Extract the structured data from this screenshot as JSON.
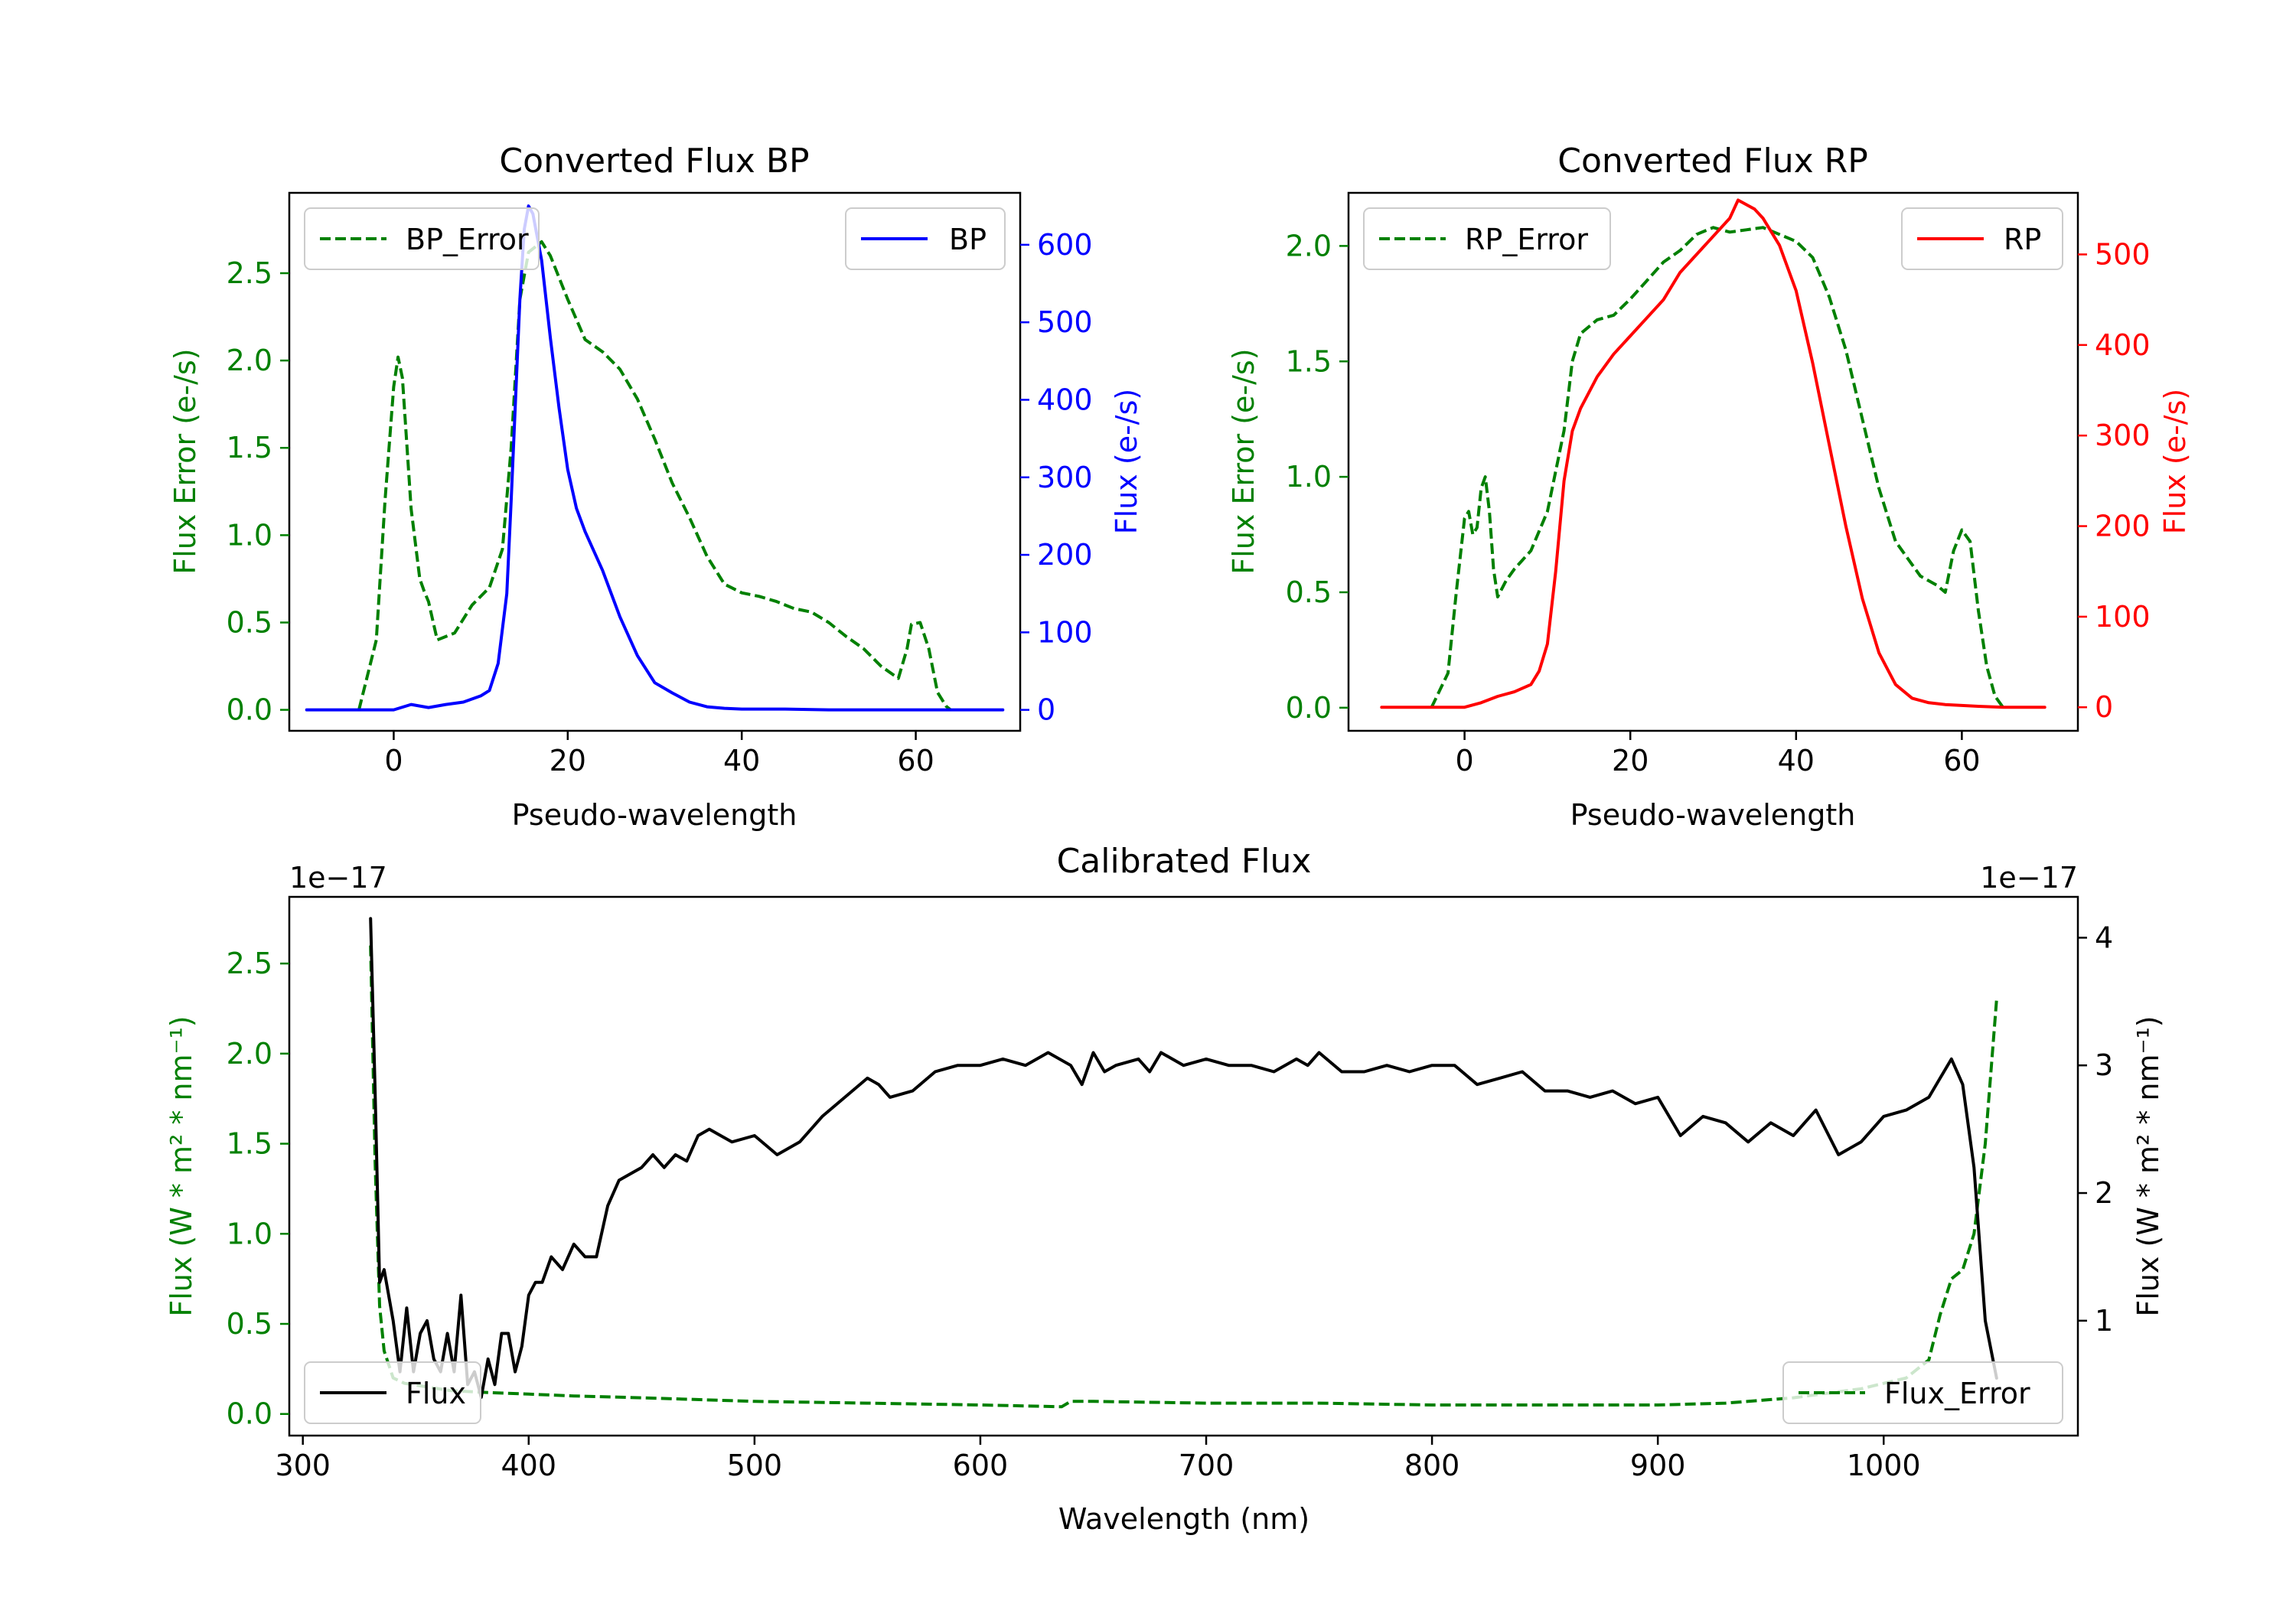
{
  "chart_data": [
    {
      "type": "line",
      "title": "Converted Flux BP",
      "xlabel": "Pseudo-wavelength",
      "ylabel_left": "Flux Error (e-/s)",
      "ylabel_right": "Flux (e-/s)",
      "xlim": [
        -12,
        72
      ],
      "ylim_left": [
        -0.12,
        2.96
      ],
      "ylim_right": [
        -27.0,
        667.0
      ],
      "xticks": [
        "0",
        "20",
        "40",
        "60"
      ],
      "yticks_left": [
        "0.0",
        "0.5",
        "1.0",
        "1.5",
        "2.0",
        "2.5"
      ],
      "yticks_right": [
        "0",
        "100",
        "200",
        "300",
        "400",
        "500",
        "600"
      ],
      "colors": {
        "error": "#008000",
        "flux": "#0000ff"
      },
      "series": [
        {
          "name": "BP_Error",
          "axis": "left",
          "style": "dashed",
          "color": "#008000",
          "x": [
            -4,
            -2,
            -1,
            0,
            0.5,
            1,
            2,
            3,
            3.5,
            4,
            5,
            7,
            9,
            11,
            12.5,
            13.5,
            14.5,
            15.5,
            17,
            18,
            20,
            22,
            24,
            26,
            28,
            30,
            32,
            34,
            36,
            38,
            40,
            42,
            44,
            46,
            48,
            50,
            52,
            54,
            56,
            58,
            59,
            59.5,
            60.5,
            61.5,
            62.5,
            63.5,
            64
          ],
          "y": [
            0.0,
            0.4,
            1.2,
            1.85,
            2.02,
            1.9,
            1.15,
            0.75,
            0.68,
            0.62,
            0.4,
            0.44,
            0.6,
            0.7,
            0.92,
            1.5,
            2.35,
            2.62,
            2.68,
            2.6,
            2.35,
            2.12,
            2.05,
            1.95,
            1.78,
            1.55,
            1.3,
            1.1,
            0.88,
            0.72,
            0.67,
            0.65,
            0.62,
            0.58,
            0.56,
            0.5,
            0.42,
            0.35,
            0.25,
            0.18,
            0.35,
            0.49,
            0.5,
            0.35,
            0.1,
            0.02,
            0.0
          ]
        },
        {
          "name": "BP",
          "axis": "right",
          "style": "solid",
          "color": "#0000ff",
          "x": [
            -10,
            -6,
            -2,
            0,
            2,
            4,
            6,
            8,
            10,
            11,
            12,
            13,
            13.5,
            14,
            14.5,
            15,
            15.5,
            16,
            17,
            18,
            19,
            20,
            21,
            22,
            24,
            26,
            28,
            30,
            32,
            34,
            36,
            38,
            40,
            45,
            50,
            55,
            60,
            65,
            70
          ],
          "y": [
            0,
            0,
            0,
            0,
            7,
            3,
            7,
            10,
            18,
            25,
            60,
            150,
            270,
            400,
            530,
            620,
            650,
            640,
            580,
            480,
            390,
            310,
            260,
            230,
            180,
            120,
            70,
            35,
            22,
            10,
            4,
            2,
            1,
            1,
            0,
            0,
            0,
            0,
            0
          ]
        }
      ],
      "legend": [
        {
          "label": "BP_Error",
          "position": "upper-left"
        },
        {
          "label": "BP",
          "position": "upper-right"
        }
      ]
    },
    {
      "type": "line",
      "title": "Converted Flux RP",
      "xlabel": "Pseudo-wavelength",
      "ylabel_left": "Flux Error (e-/s)",
      "ylabel_right": "Flux (e-/s)",
      "xlim": [
        -14,
        74
      ],
      "ylim_left": [
        -0.1,
        2.23
      ],
      "ylim_right": [
        -26.0,
        568.0
      ],
      "xticks": [
        "0",
        "20",
        "40",
        "60"
      ],
      "yticks_left": [
        "0.0",
        "0.5",
        "1.0",
        "1.5",
        "2.0"
      ],
      "yticks_right": [
        "0",
        "100",
        "200",
        "300",
        "400",
        "500"
      ],
      "colors": {
        "error": "#008000",
        "flux": "#ff0000"
      },
      "series": [
        {
          "name": "RP_Error",
          "axis": "left",
          "style": "dashed",
          "color": "#008000",
          "x": [
            -4,
            -2,
            -1,
            0,
            0.5,
            1,
            1.5,
            2,
            2.5,
            3,
            3.5,
            4,
            5,
            6,
            8,
            10,
            12,
            13,
            14,
            16,
            18,
            20,
            22,
            24,
            26,
            28,
            30,
            32,
            34,
            36,
            38,
            40,
            42,
            44,
            46,
            48,
            50,
            52,
            54,
            55,
            56,
            57,
            58,
            59,
            60,
            61,
            62,
            63,
            64,
            65
          ],
          "y": [
            0.0,
            0.15,
            0.5,
            0.82,
            0.85,
            0.75,
            0.78,
            0.95,
            1.0,
            0.85,
            0.6,
            0.48,
            0.55,
            0.6,
            0.68,
            0.85,
            1.2,
            1.5,
            1.62,
            1.68,
            1.7,
            1.77,
            1.85,
            1.93,
            1.98,
            2.05,
            2.08,
            2.06,
            2.07,
            2.08,
            2.05,
            2.02,
            1.95,
            1.78,
            1.55,
            1.25,
            0.95,
            0.72,
            0.62,
            0.57,
            0.55,
            0.53,
            0.5,
            0.68,
            0.77,
            0.72,
            0.42,
            0.18,
            0.05,
            0.0
          ]
        },
        {
          "name": "RP",
          "axis": "right",
          "style": "solid",
          "color": "#ff0000",
          "x": [
            -10,
            -6,
            -2,
            0,
            2,
            4,
            6,
            8,
            9,
            10,
            11,
            12,
            13,
            14,
            16,
            18,
            20,
            22,
            24,
            26,
            28,
            30,
            32,
            33,
            34,
            35,
            36,
            38,
            40,
            42,
            44,
            46,
            48,
            50,
            52,
            54,
            56,
            58,
            60,
            62,
            65,
            70
          ],
          "y": [
            0,
            0,
            0,
            0,
            5,
            12,
            17,
            25,
            40,
            70,
            150,
            250,
            305,
            330,
            365,
            390,
            410,
            430,
            450,
            480,
            500,
            520,
            540,
            560,
            555,
            550,
            540,
            510,
            460,
            380,
            290,
            200,
            120,
            60,
            25,
            10,
            5,
            3,
            2,
            1,
            0,
            0
          ]
        }
      ],
      "legend": [
        {
          "label": "RP_Error",
          "position": "upper-left"
        },
        {
          "label": "RP",
          "position": "upper-right"
        }
      ]
    },
    {
      "type": "line",
      "title": "Calibrated Flux",
      "xlabel": "Wavelength (nm)",
      "ylabel_left": "Flux (W * m² * nm⁻¹)",
      "ylabel_right": "Flux (W * m² * nm⁻¹)",
      "offset_left": "1e−17",
      "offset_right": "1e−17",
      "xlim": [
        294,
        1086
      ],
      "ylim_left": [
        -0.12,
        2.87
      ],
      "ylim_right": [
        0.1,
        4.32
      ],
      "xticks": [
        "300",
        "400",
        "500",
        "600",
        "700",
        "800",
        "900",
        "1000"
      ],
      "yticks_left": [
        "0.0",
        "0.5",
        "1.0",
        "1.5",
        "2.0",
        "2.5"
      ],
      "yticks_right": [
        "1",
        "2",
        "3",
        "4"
      ],
      "colors": {
        "error": "#008000",
        "flux": "#000000"
      },
      "series": [
        {
          "name": "Flux_Error",
          "axis": "left",
          "style": "dashed",
          "color": "#008000",
          "x": [
            330,
            332,
            334,
            336,
            340,
            345,
            355,
            365,
            380,
            400,
            420,
            450,
            500,
            550,
            600,
            636,
            640,
            650,
            700,
            750,
            800,
            850,
            900,
            930,
            960,
            990,
            1010,
            1020,
            1025,
            1030,
            1035,
            1040,
            1045,
            1050
          ],
          "y": [
            2.6,
            1.4,
            0.6,
            0.35,
            0.2,
            0.17,
            0.15,
            0.13,
            0.12,
            0.11,
            0.1,
            0.09,
            0.07,
            0.06,
            0.05,
            0.04,
            0.07,
            0.07,
            0.06,
            0.06,
            0.05,
            0.05,
            0.05,
            0.06,
            0.09,
            0.14,
            0.2,
            0.3,
            0.55,
            0.75,
            0.8,
            1.0,
            1.5,
            2.3
          ]
        },
        {
          "name": "Flux",
          "axis": "right",
          "style": "solid",
          "color": "#000000",
          "x": [
            330,
            332,
            334,
            336,
            340,
            343,
            346,
            349,
            352,
            355,
            358,
            361,
            364,
            367,
            370,
            373,
            376,
            379,
            382,
            385,
            388,
            391,
            394,
            397,
            400,
            403,
            406,
            410,
            415,
            420,
            425,
            430,
            435,
            440,
            445,
            450,
            455,
            460,
            465,
            470,
            475,
            480,
            485,
            490,
            500,
            510,
            520,
            530,
            540,
            550,
            555,
            560,
            570,
            580,
            590,
            600,
            610,
            620,
            630,
            640,
            645,
            650,
            655,
            660,
            670,
            675,
            680,
            690,
            700,
            710,
            720,
            730,
            740,
            745,
            750,
            760,
            770,
            780,
            790,
            800,
            810,
            820,
            830,
            840,
            850,
            860,
            870,
            880,
            890,
            900,
            910,
            920,
            930,
            940,
            950,
            960,
            970,
            980,
            990,
            1000,
            1010,
            1020,
            1025,
            1030,
            1035,
            1040,
            1045,
            1050
          ],
          "y": [
            4.15,
            2.8,
            1.3,
            1.4,
            1.0,
            0.6,
            1.1,
            0.6,
            0.9,
            1.0,
            0.7,
            0.6,
            0.9,
            0.6,
            1.2,
            0.5,
            0.6,
            0.4,
            0.7,
            0.5,
            0.9,
            0.9,
            0.6,
            0.8,
            1.2,
            1.3,
            1.3,
            1.5,
            1.4,
            1.6,
            1.5,
            1.5,
            1.9,
            2.1,
            2.15,
            2.2,
            2.3,
            2.2,
            2.3,
            2.25,
            2.45,
            2.5,
            2.45,
            2.4,
            2.45,
            2.3,
            2.4,
            2.6,
            2.75,
            2.9,
            2.85,
            2.75,
            2.8,
            2.95,
            3.0,
            3.0,
            3.05,
            3.0,
            3.1,
            3.0,
            2.85,
            3.1,
            2.95,
            3.0,
            3.05,
            2.95,
            3.1,
            3.0,
            3.05,
            3.0,
            3.0,
            2.95,
            3.05,
            3.0,
            3.1,
            2.95,
            2.95,
            3.0,
            2.95,
            3.0,
            3.0,
            2.85,
            2.9,
            2.95,
            2.8,
            2.8,
            2.75,
            2.8,
            2.7,
            2.75,
            2.45,
            2.6,
            2.55,
            2.4,
            2.55,
            2.45,
            2.65,
            2.3,
            2.4,
            2.6,
            2.65,
            2.75,
            2.9,
            3.05,
            2.85,
            2.2,
            1.0,
            0.55
          ]
        }
      ],
      "legend": [
        {
          "label": "Flux",
          "position": "lower-left"
        },
        {
          "label": "Flux_Error",
          "position": "lower-right"
        }
      ]
    }
  ]
}
